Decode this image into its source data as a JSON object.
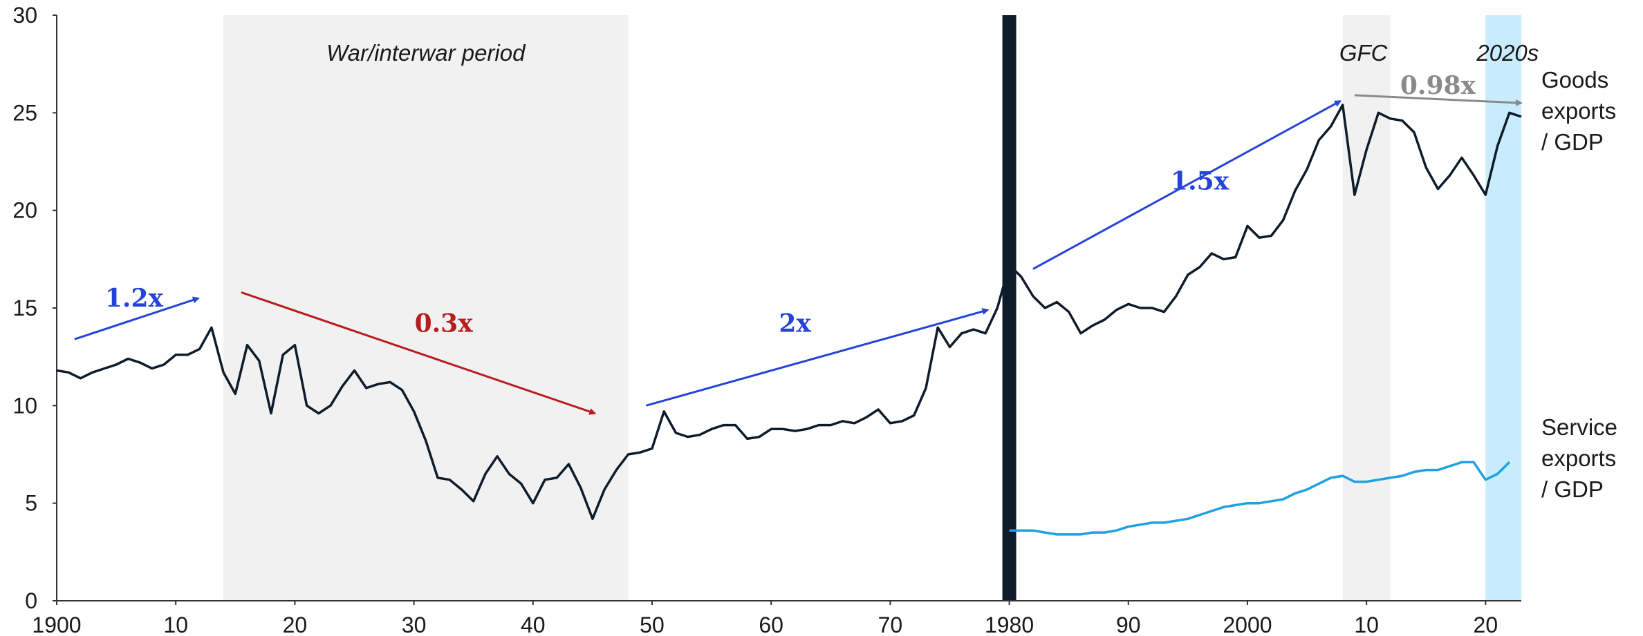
{
  "chart_data": {
    "type": "line",
    "title": "",
    "xlabel": "",
    "ylabel": "",
    "xlim": [
      1900,
      2023
    ],
    "ylim": [
      0,
      30
    ],
    "x_ticks": [
      {
        "value": 1900,
        "label": "1900"
      },
      {
        "value": 1910,
        "label": "10"
      },
      {
        "value": 1920,
        "label": "20"
      },
      {
        "value": 1930,
        "label": "30"
      },
      {
        "value": 1940,
        "label": "40"
      },
      {
        "value": 1950,
        "label": "50"
      },
      {
        "value": 1960,
        "label": "60"
      },
      {
        "value": 1970,
        "label": "70"
      },
      {
        "value": 1980,
        "label": "1980"
      },
      {
        "value": 1990,
        "label": "90"
      },
      {
        "value": 2000,
        "label": "2000"
      },
      {
        "value": 2010,
        "label": "10"
      },
      {
        "value": 2020,
        "label": "20"
      }
    ],
    "y_ticks": [
      {
        "value": 0,
        "label": "0"
      },
      {
        "value": 5,
        "label": "5"
      },
      {
        "value": 10,
        "label": "10"
      },
      {
        "value": 15,
        "label": "15"
      },
      {
        "value": 20,
        "label": "20"
      },
      {
        "value": 25,
        "label": "25"
      },
      {
        "value": 30,
        "label": "30"
      }
    ],
    "grid": false,
    "series": [
      {
        "name": "Goods exports / GDP",
        "label_lines": [
          "Goods",
          "exports",
          "/ GDP"
        ],
        "color": "#0d1b2a",
        "x": [
          1900,
          1901,
          1902,
          1903,
          1904,
          1905,
          1906,
          1907,
          1908,
          1909,
          1910,
          1911,
          1912,
          1913,
          1914,
          1915,
          1916,
          1917,
          1918,
          1919,
          1920,
          1921,
          1922,
          1923,
          1924,
          1925,
          1926,
          1927,
          1928,
          1929,
          1930,
          1931,
          1932,
          1933,
          1934,
          1935,
          1936,
          1937,
          1938,
          1939,
          1940,
          1941,
          1942,
          1943,
          1944,
          1945,
          1946,
          1947,
          1948,
          1949,
          1950,
          1951,
          1952,
          1953,
          1954,
          1955,
          1956,
          1957,
          1958,
          1959,
          1960,
          1961,
          1962,
          1963,
          1964,
          1965,
          1966,
          1967,
          1968,
          1969,
          1970,
          1971,
          1972,
          1973,
          1974,
          1975,
          1976,
          1977,
          1978,
          1979,
          1980,
          1981,
          1982,
          1983,
          1984,
          1985,
          1986,
          1987,
          1988,
          1989,
          1990,
          1991,
          1992,
          1993,
          1994,
          1995,
          1996,
          1997,
          1998,
          1999,
          2000,
          2001,
          2002,
          2003,
          2004,
          2005,
          2006,
          2007,
          2008,
          2009,
          2010,
          2011,
          2012,
          2013,
          2014,
          2015,
          2016,
          2017,
          2018,
          2019,
          2020,
          2021,
          2022,
          2023
        ],
        "values": [
          11.8,
          11.7,
          11.4,
          11.7,
          11.9,
          12.1,
          12.4,
          12.2,
          11.9,
          12.1,
          12.6,
          12.6,
          12.9,
          14.0,
          11.7,
          10.6,
          13.1,
          12.3,
          9.6,
          12.6,
          13.1,
          10.0,
          9.6,
          10.0,
          11.0,
          11.8,
          10.9,
          11.1,
          11.2,
          10.8,
          9.7,
          8.2,
          6.3,
          6.2,
          5.7,
          5.1,
          6.5,
          7.4,
          6.5,
          6.0,
          5.0,
          6.2,
          6.3,
          7.0,
          5.8,
          4.2,
          5.7,
          6.7,
          7.5,
          7.6,
          7.8,
          9.7,
          8.6,
          8.4,
          8.5,
          8.8,
          9.0,
          9.0,
          8.3,
          8.4,
          8.8,
          8.8,
          8.7,
          8.8,
          9.0,
          9.0,
          9.2,
          9.1,
          9.4,
          9.8,
          9.1,
          9.2,
          9.5,
          10.9,
          14.0,
          13.0,
          13.7,
          13.9,
          13.7,
          15.0,
          17.2,
          16.6,
          15.6,
          15.0,
          15.3,
          14.8,
          13.7,
          14.1,
          14.4,
          14.9,
          15.2,
          15.0,
          15.0,
          14.8,
          15.6,
          16.7,
          17.1,
          17.8,
          17.5,
          17.6,
          19.2,
          18.6,
          18.7,
          19.5,
          21.0,
          22.1,
          23.6,
          24.3,
          25.4,
          20.8,
          23.1,
          25.0,
          24.7,
          24.6,
          24.0,
          22.2,
          21.1,
          21.8,
          22.7,
          21.8,
          20.8,
          23.3,
          25.0,
          24.8
        ]
      },
      {
        "name": "Service exports / GDP",
        "label_lines": [
          "Service",
          "exports",
          "/ GDP"
        ],
        "color": "#1da1e2",
        "x": [
          1980,
          1981,
          1982,
          1983,
          1984,
          1985,
          1986,
          1987,
          1988,
          1989,
          1990,
          1991,
          1992,
          1993,
          1994,
          1995,
          1996,
          1997,
          1998,
          1999,
          2000,
          2001,
          2002,
          2003,
          2004,
          2005,
          2006,
          2007,
          2008,
          2009,
          2010,
          2011,
          2012,
          2013,
          2014,
          2015,
          2016,
          2017,
          2018,
          2019,
          2020,
          2021,
          2022
        ],
        "values": [
          3.6,
          3.6,
          3.6,
          3.5,
          3.4,
          3.4,
          3.4,
          3.5,
          3.5,
          3.6,
          3.8,
          3.9,
          4.0,
          4.0,
          4.1,
          4.2,
          4.4,
          4.6,
          4.8,
          4.9,
          5.0,
          5.0,
          5.1,
          5.2,
          5.5,
          5.7,
          6.0,
          6.3,
          6.4,
          6.1,
          6.1,
          6.2,
          6.3,
          6.4,
          6.6,
          6.7,
          6.7,
          6.9,
          7.1,
          7.1,
          6.2,
          6.5,
          7.1
        ]
      }
    ],
    "shaded_periods": [
      {
        "label": "War/interwar period",
        "start": 1914,
        "end": 1948,
        "color": "#f1f1f1"
      },
      {
        "label": "GFC",
        "start": 2008,
        "end": 2012,
        "color": "#f1f1f1"
      },
      {
        "label": "2020s",
        "start": 2020,
        "end": 2023,
        "color": "#c8ecfc"
      }
    ],
    "divider": {
      "x": 1980,
      "color": "#0d1b2a"
    },
    "annotations": [
      {
        "label": "1.2x",
        "color": "#2443d9",
        "from": [
          1901.5,
          13.4
        ],
        "to": [
          1911.9,
          15.5
        ],
        "label_pos": [
          1906.5,
          15.5
        ]
      },
      {
        "label": "0.3x",
        "color": "#b81c1c",
        "from": [
          1915.5,
          15.8
        ],
        "to": [
          1945.2,
          9.6
        ],
        "label_pos": [
          1932.5,
          14.2
        ]
      },
      {
        "label": "2x",
        "color": "#2443d9",
        "from": [
          1949.5,
          10.0
        ],
        "to": [
          1978.2,
          14.9
        ],
        "label_pos": [
          1962.0,
          14.2
        ]
      },
      {
        "label": "1.5x",
        "color": "#2443d9",
        "from": [
          1982.0,
          17.0
        ],
        "to": [
          2007.8,
          25.6
        ],
        "label_pos": [
          1996.0,
          21.5
        ]
      },
      {
        "label": "0.98x",
        "color": "#8a8a8a",
        "from": [
          2009.0,
          25.9
        ],
        "to": [
          2023.0,
          25.5
        ],
        "label_pos": [
          2016.0,
          26.4
        ]
      }
    ]
  }
}
